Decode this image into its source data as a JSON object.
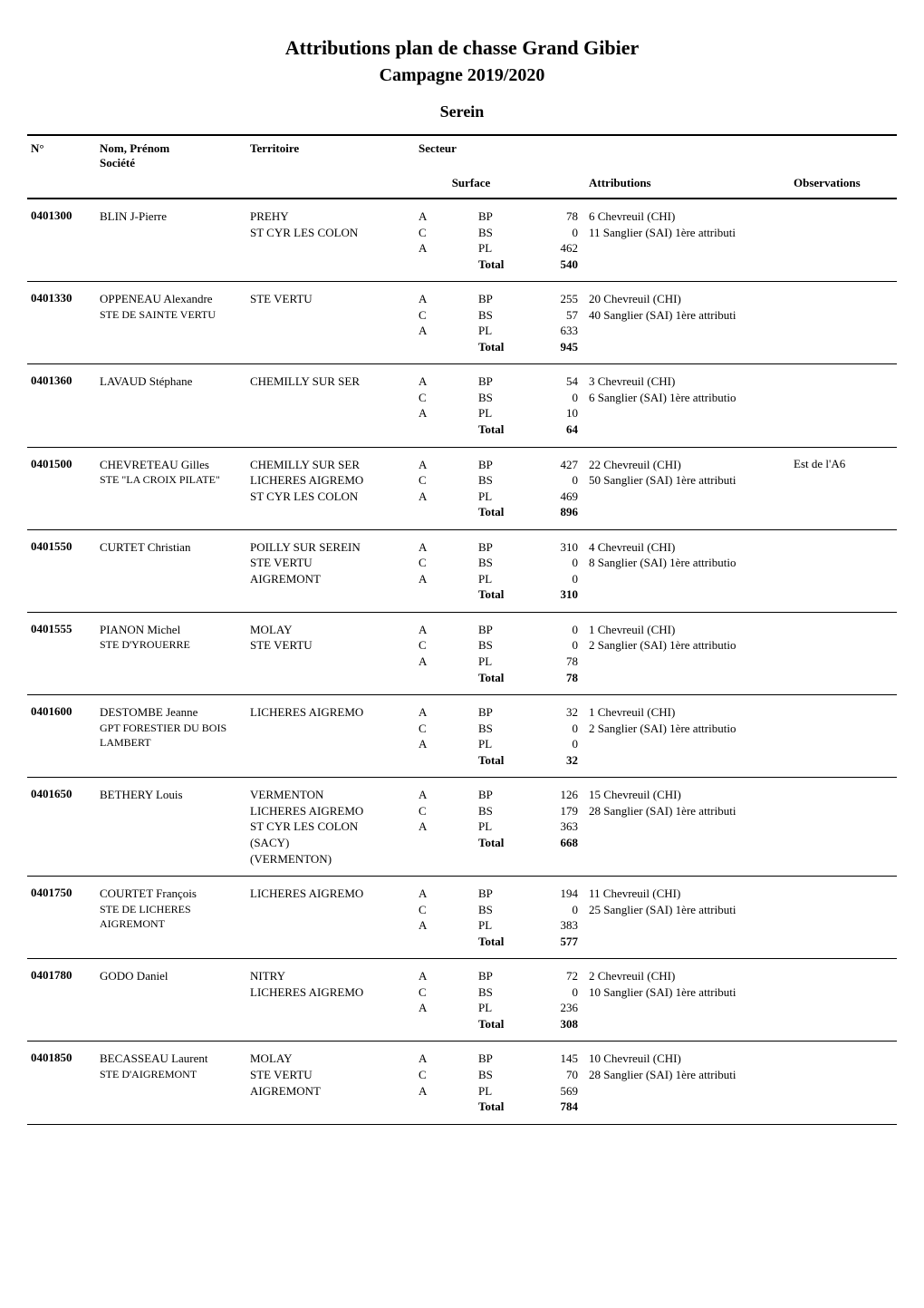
{
  "title": "Attributions plan de chasse Grand Gibier",
  "subtitle": "Campagne 2019/2020",
  "region": "Serein",
  "headers": {
    "num": "N°",
    "nom": "Nom, Prénom",
    "societe": "Société",
    "territoire": "Territoire",
    "secteur": "Secteur",
    "surface": "Surface",
    "attributions": "Attributions",
    "observations": "Observations"
  },
  "surface_labels": [
    "BP",
    "BS",
    "PL",
    "Total"
  ],
  "entries": [
    {
      "num": "0401300",
      "nom": "BLIN J-Pierre",
      "societe": "",
      "territoires": [
        "PREHY",
        "ST CYR LES COLON"
      ],
      "secteurs": [
        "A",
        "C",
        "A"
      ],
      "surface": {
        "BP": 78,
        "BS": 0,
        "PL": 462,
        "Total": 540
      },
      "attributions": [
        "6 Chevreuil (CHI)",
        "11 Sanglier (SAI) 1ère attributi"
      ],
      "observations": ""
    },
    {
      "num": "0401330",
      "nom": "OPPENEAU Alexandre",
      "societe": "STE DE SAINTE VERTU",
      "territoires": [
        "STE VERTU"
      ],
      "secteurs": [
        "A",
        "C",
        "A"
      ],
      "surface": {
        "BP": 255,
        "BS": 57,
        "PL": 633,
        "Total": 945
      },
      "attributions": [
        "20 Chevreuil (CHI)",
        "40 Sanglier (SAI) 1ère attributi"
      ],
      "observations": ""
    },
    {
      "num": "0401360",
      "nom": "LAVAUD Stéphane",
      "societe": "",
      "territoires": [
        "CHEMILLY SUR SER"
      ],
      "secteurs": [
        "A",
        "C",
        "A"
      ],
      "surface": {
        "BP": 54,
        "BS": 0,
        "PL": 10,
        "Total": 64
      },
      "attributions": [
        "3 Chevreuil (CHI)",
        "6 Sanglier (SAI) 1ère attributio"
      ],
      "observations": ""
    },
    {
      "num": "0401500",
      "nom": "CHEVRETEAU Gilles",
      "societe": "STE \"LA CROIX PILATE\"",
      "territoires": [
        "CHEMILLY SUR SER",
        "LICHERES AIGREMO",
        "ST CYR LES COLON"
      ],
      "secteurs": [
        "A",
        "C",
        "A"
      ],
      "surface": {
        "BP": 427,
        "BS": 0,
        "PL": 469,
        "Total": 896
      },
      "attributions": [
        "22 Chevreuil (CHI)",
        "50 Sanglier (SAI) 1ère attributi"
      ],
      "observations": "Est de l'A6"
    },
    {
      "num": "0401550",
      "nom": "CURTET Christian",
      "societe": "",
      "territoires": [
        "POILLY SUR SEREIN",
        "STE VERTU",
        "AIGREMONT"
      ],
      "secteurs": [
        "A",
        "C",
        "A"
      ],
      "surface": {
        "BP": 310,
        "BS": 0,
        "PL": 0,
        "Total": 310
      },
      "attributions": [
        "4 Chevreuil (CHI)",
        "8 Sanglier (SAI) 1ère attributio"
      ],
      "observations": ""
    },
    {
      "num": "0401555",
      "nom": "PIANON Michel",
      "societe": "STE D'YROUERRE",
      "territoires": [
        "MOLAY",
        "STE VERTU"
      ],
      "secteurs": [
        "A",
        "C",
        "A"
      ],
      "surface": {
        "BP": 0,
        "BS": 0,
        "PL": 78,
        "Total": 78
      },
      "attributions": [
        "1 Chevreuil (CHI)",
        "2 Sanglier (SAI) 1ère attributio"
      ],
      "observations": ""
    },
    {
      "num": "0401600",
      "nom": "DESTOMBE Jeanne",
      "societe": "GPT FORESTIER DU BOIS LAMBERT",
      "territoires": [
        "LICHERES AIGREMO"
      ],
      "secteurs": [
        "A",
        "C",
        "A"
      ],
      "surface": {
        "BP": 32,
        "BS": 0,
        "PL": 0,
        "Total": 32
      },
      "attributions": [
        "1 Chevreuil (CHI)",
        "2 Sanglier (SAI) 1ère attributio"
      ],
      "observations": ""
    },
    {
      "num": "0401650",
      "nom": "BETHERY Louis",
      "societe": "",
      "territoires": [
        "VERMENTON",
        "LICHERES AIGREMO",
        "ST CYR LES COLON",
        "(SACY)",
        "(VERMENTON)"
      ],
      "secteurs": [
        "A",
        "C",
        "A"
      ],
      "surface": {
        "BP": 126,
        "BS": 179,
        "PL": 363,
        "Total": 668
      },
      "attributions": [
        "15 Chevreuil (CHI)",
        "28 Sanglier (SAI) 1ère attributi"
      ],
      "observations": ""
    },
    {
      "num": "0401750",
      "nom": "COURTET François",
      "societe": "STE DE LICHERES AIGREMONT",
      "territoires": [
        "LICHERES AIGREMO"
      ],
      "secteurs": [
        "A",
        "C",
        "A"
      ],
      "surface": {
        "BP": 194,
        "BS": 0,
        "PL": 383,
        "Total": 577
      },
      "attributions": [
        "11 Chevreuil (CHI)",
        "25 Sanglier (SAI) 1ère attributi"
      ],
      "observations": ""
    },
    {
      "num": "0401780",
      "nom": "GODO Daniel",
      "societe": "",
      "territoires": [
        "NITRY",
        "LICHERES AIGREMO"
      ],
      "secteurs": [
        "A",
        "C",
        "A"
      ],
      "surface": {
        "BP": 72,
        "BS": 0,
        "PL": 236,
        "Total": 308
      },
      "attributions": [
        "2 Chevreuil (CHI)",
        "10 Sanglier (SAI) 1ère attributi"
      ],
      "observations": ""
    },
    {
      "num": "0401850",
      "nom": "BECASSEAU Laurent",
      "societe": "STE D'AIGREMONT",
      "territoires": [
        "MOLAY",
        "STE VERTU",
        "AIGREMONT"
      ],
      "secteurs": [
        "A",
        "C",
        "A"
      ],
      "surface": {
        "BP": 145,
        "BS": 70,
        "PL": 569,
        "Total": 784
      },
      "attributions": [
        "10 Chevreuil (CHI)",
        "28 Sanglier (SAI) 1ère attributi"
      ],
      "observations": ""
    }
  ]
}
